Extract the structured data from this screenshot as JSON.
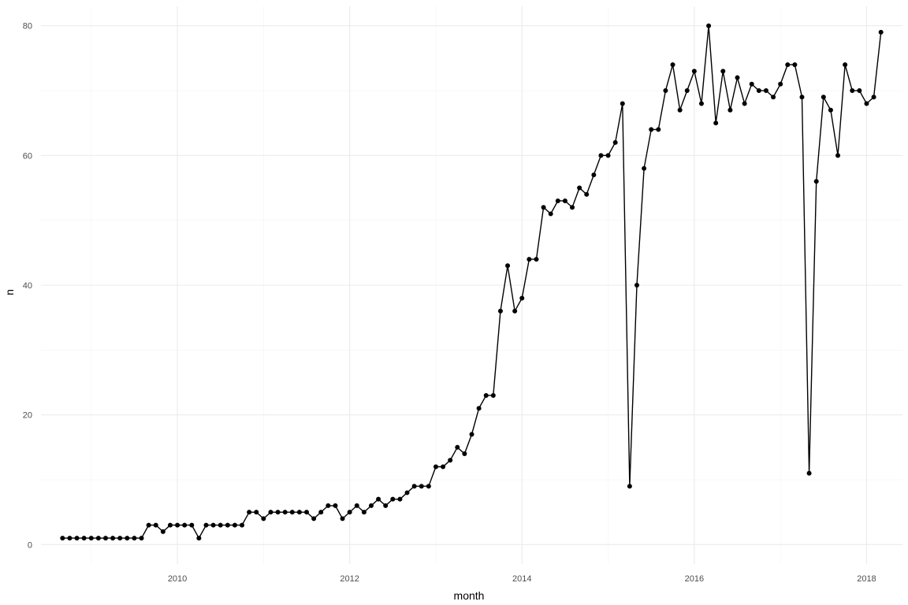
{
  "chart_data": {
    "type": "line",
    "xlabel": "month",
    "ylabel": "n",
    "x_tick_labels": [
      "2010",
      "2012",
      "2014",
      "2016",
      "2018"
    ],
    "y_tick_labels": [
      "0",
      "20",
      "40",
      "60",
      "80"
    ],
    "xlim": [
      "2008-06",
      "2018-06"
    ],
    "ylim": [
      -3,
      83
    ],
    "grid": true,
    "legend": "none",
    "line_color": "#000000",
    "point_color": "#000000",
    "start_month": "2008-09",
    "series": [
      {
        "values": [
          1,
          1,
          1,
          1,
          1,
          1,
          1,
          1,
          1,
          1,
          1,
          1,
          3,
          3,
          2,
          3,
          3,
          3,
          3,
          1,
          3,
          3,
          3,
          3,
          3,
          3,
          5,
          5,
          4,
          5,
          5,
          5,
          5,
          5,
          5,
          4,
          5,
          6,
          6,
          4,
          5,
          6,
          5,
          6,
          7,
          6,
          7,
          7,
          8,
          9,
          9,
          9,
          12,
          12,
          13,
          15,
          14,
          17,
          21,
          23,
          23,
          36,
          43,
          36,
          38,
          44,
          44,
          52,
          51,
          53,
          53,
          52,
          55,
          54,
          57,
          60,
          60,
          62,
          68,
          9,
          40,
          58,
          64,
          64,
          70,
          74,
          67,
          70,
          73,
          68,
          80,
          65,
          73,
          67,
          72,
          68,
          71,
          70,
          70,
          69,
          71,
          74,
          74,
          69,
          11,
          56,
          69,
          67,
          60,
          74,
          70,
          70,
          68,
          69,
          79
        ]
      }
    ]
  }
}
